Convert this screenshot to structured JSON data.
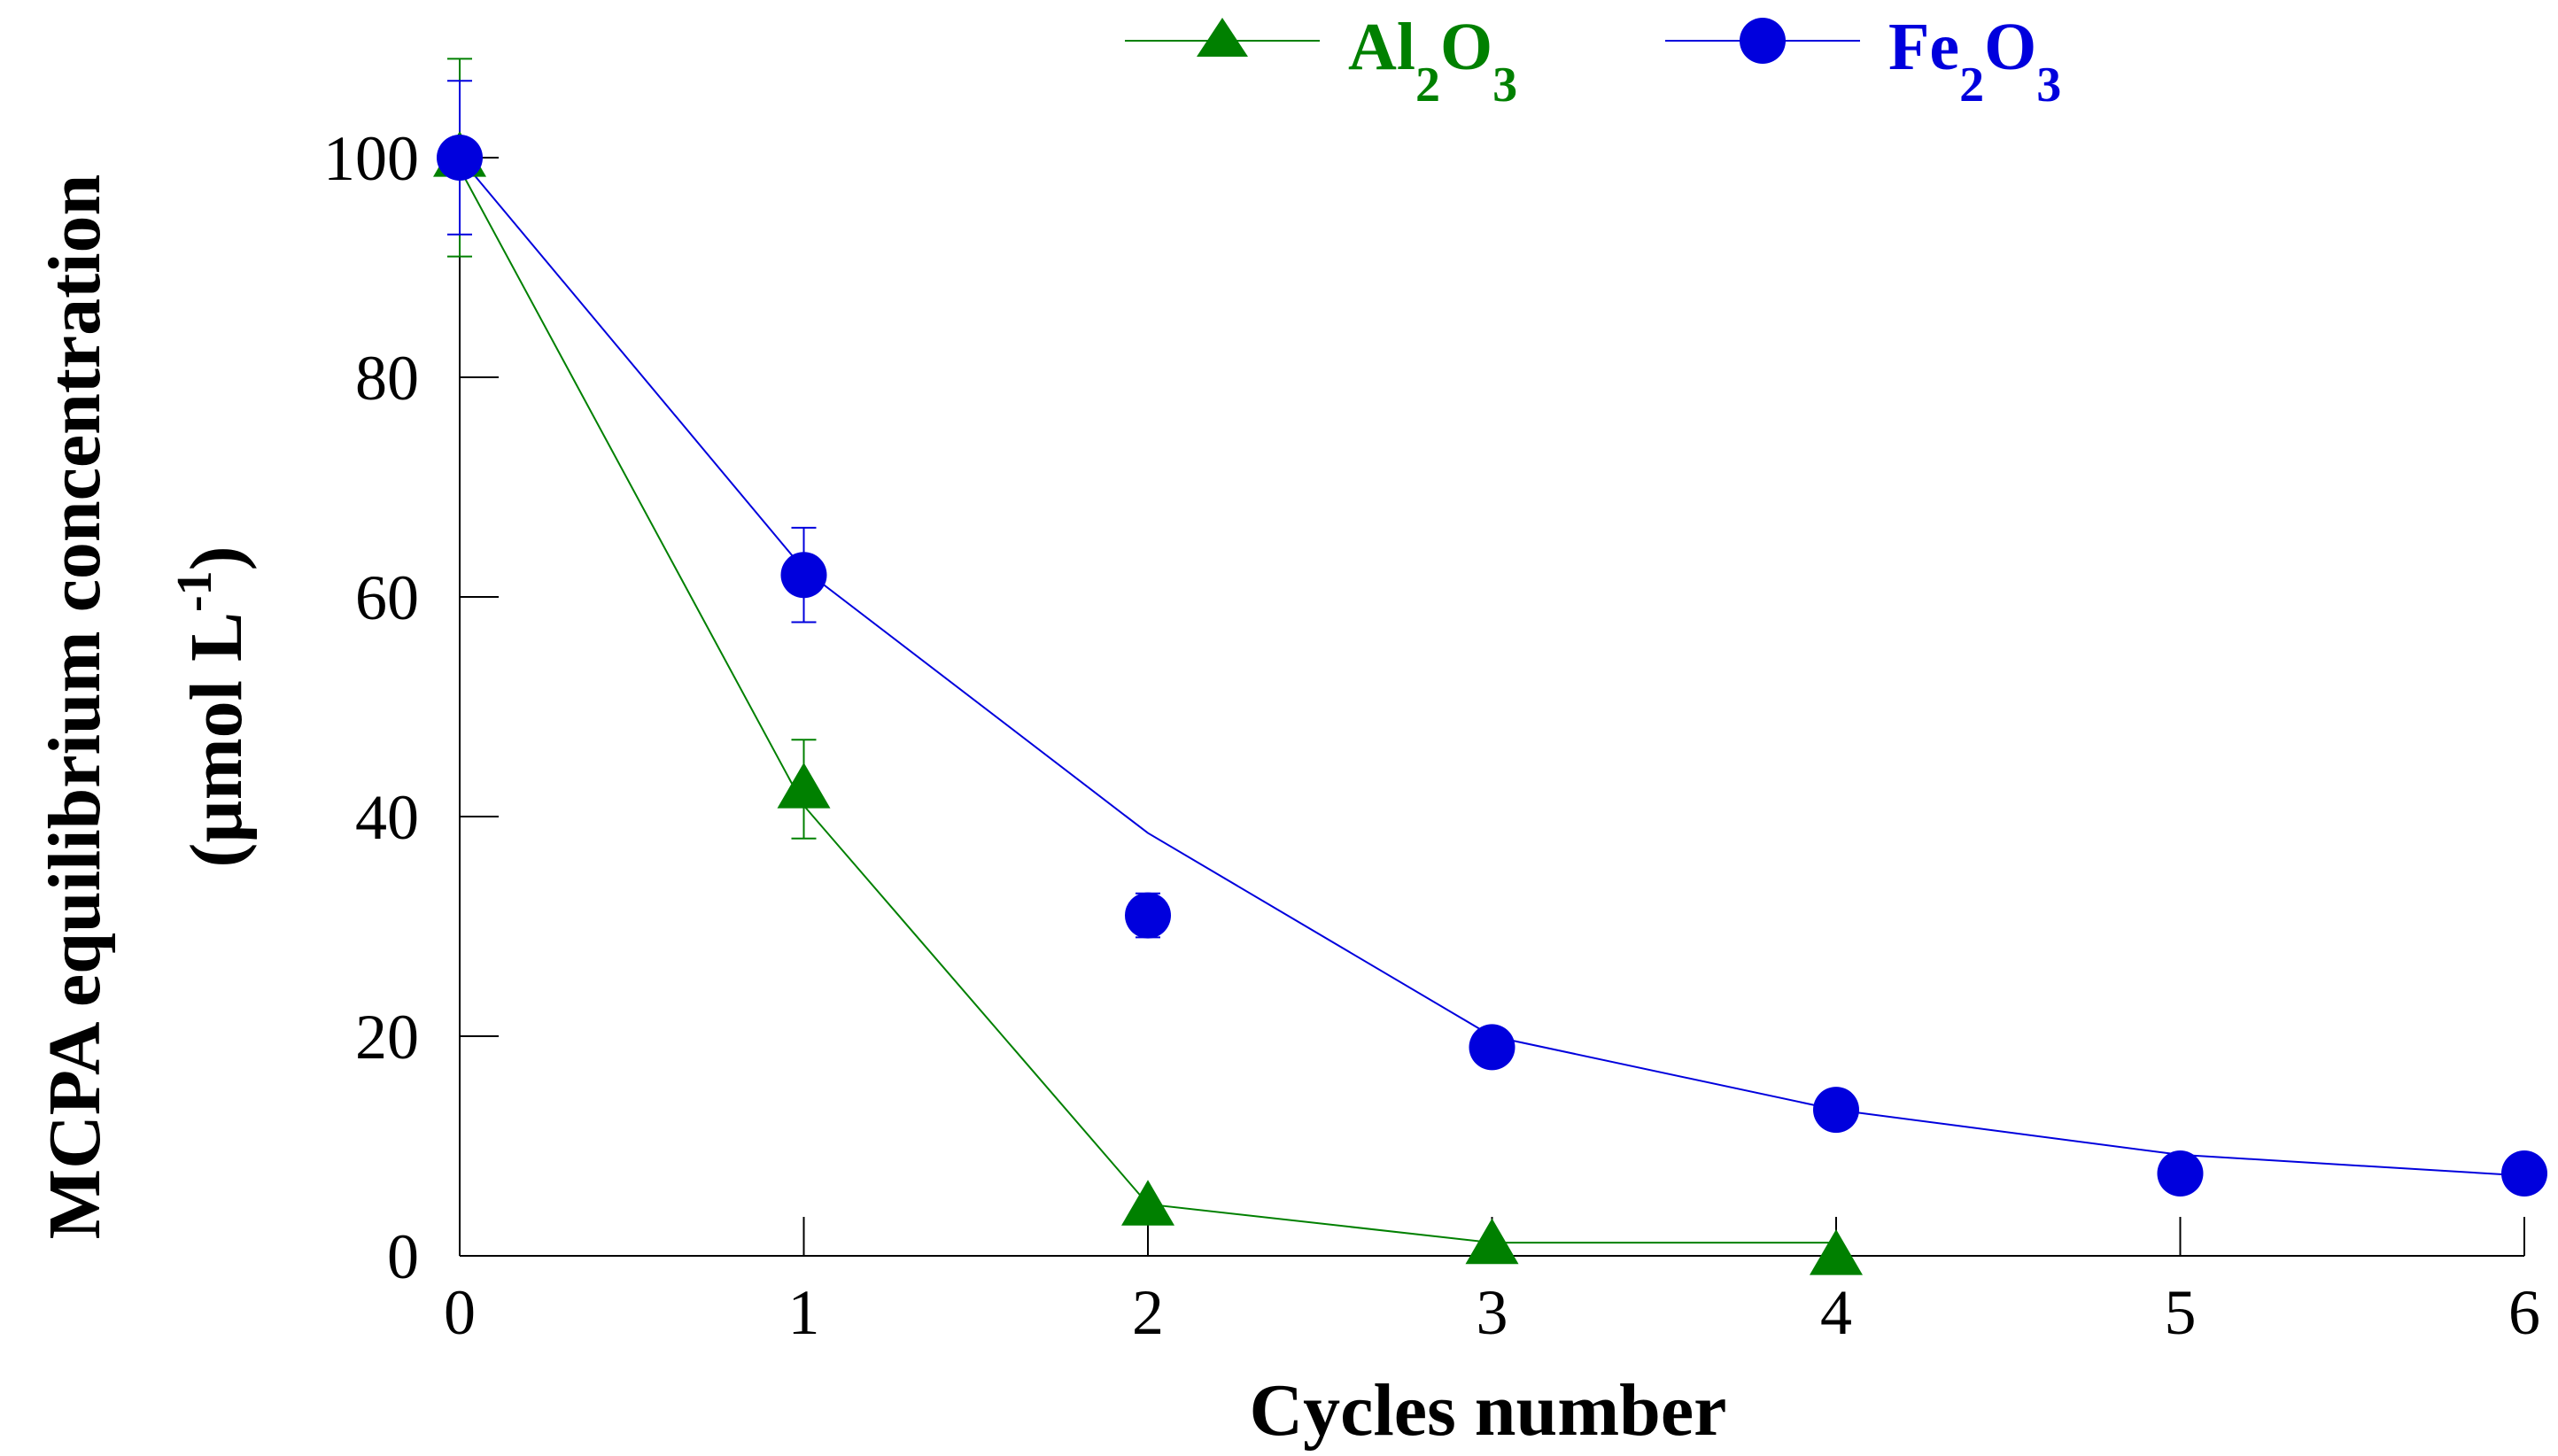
{
  "chart_data": {
    "type": "line",
    "xlabel": "Cycles number",
    "ylabel": "MCPA equilibrium concentration",
    "ylabel_unit": {
      "prefix": "(µmol L",
      "superscript": "-1",
      "suffix": ")"
    },
    "xlim": [
      0,
      6
    ],
    "ylim": [
      0,
      100
    ],
    "x_ticks": [
      0,
      1,
      2,
      3,
      4,
      5,
      6
    ],
    "y_ticks": [
      0,
      20,
      40,
      60,
      80,
      100
    ],
    "grid": false,
    "legend_position": "top-center",
    "series": [
      {
        "name": "Al2O3",
        "name_parts": {
          "a": "Al",
          "sub1": "2",
          "b": "O",
          "sub2": "3"
        },
        "color": "#008000",
        "marker": "triangle",
        "points": [
          {
            "x": 0,
            "y": 100,
            "err": 9
          },
          {
            "x": 1,
            "y": 42.5,
            "err": 4.5
          },
          {
            "x": 2,
            "y": 4.5
          },
          {
            "x": 3,
            "y": 1
          },
          {
            "x": 4,
            "y": 0
          }
        ],
        "line": [
          {
            "x": 0,
            "y": 99
          },
          {
            "x": 1,
            "y": 41
          },
          {
            "x": 2,
            "y": 4.7
          },
          {
            "x": 3,
            "y": 1.2
          },
          {
            "x": 4,
            "y": 1.2
          }
        ]
      },
      {
        "name": "Fe2O3",
        "name_parts": {
          "a": "Fe",
          "sub1": "2",
          "b": "O",
          "sub2": "3"
        },
        "color": "#0000dd",
        "marker": "circle",
        "points": [
          {
            "x": 0,
            "y": 100,
            "err": 7
          },
          {
            "x": 1,
            "y": 62,
            "err": 4.3
          },
          {
            "x": 2,
            "y": 31,
            "err": 2
          },
          {
            "x": 3,
            "y": 19
          },
          {
            "x": 4,
            "y": 13.3
          },
          {
            "x": 5,
            "y": 7.5
          },
          {
            "x": 6,
            "y": 7.5
          }
        ],
        "line": [
          {
            "x": 0,
            "y": 100
          },
          {
            "x": 1,
            "y": 62.5
          },
          {
            "x": 2,
            "y": 38.5
          },
          {
            "x": 3,
            "y": 20
          },
          {
            "x": 4,
            "y": 13.3
          },
          {
            "x": 5,
            "y": 9.2
          },
          {
            "x": 6,
            "y": 7.3
          }
        ]
      }
    ]
  }
}
